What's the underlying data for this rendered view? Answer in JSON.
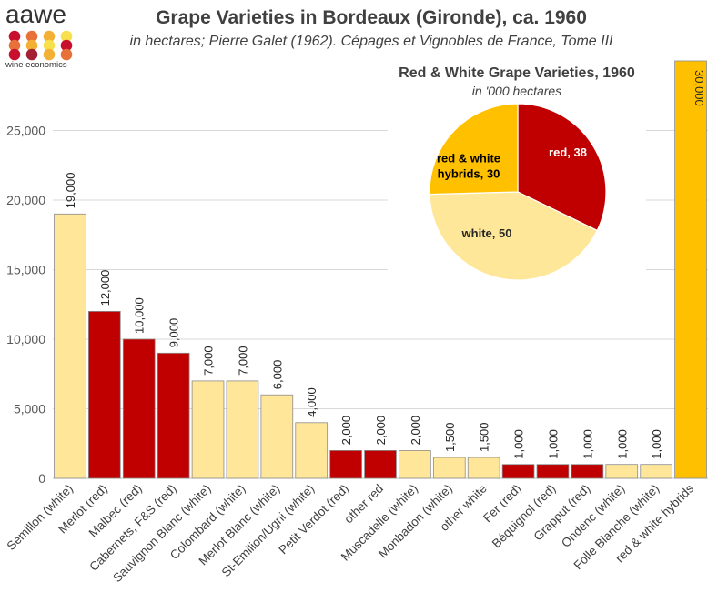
{
  "logo": {
    "word": "aawe",
    "tagline": "wine economics",
    "dot_colors": [
      "#c8102e",
      "#e8713a",
      "#f2b134",
      "#f7e04b",
      "#e8713a",
      "#f2b134",
      "#f7e04b",
      "#c8102e",
      "#c8102e",
      "#a31f34",
      "#f2b134",
      "#e8713a"
    ]
  },
  "colors": {
    "red": "#c00000",
    "white": "#ffe699",
    "hybrid": "#ffc000",
    "pie_white": "#ffe79a"
  },
  "chart_data": [
    {
      "type": "bar",
      "title": "Grape Varieties in Bordeaux (Gironde), ca. 1960",
      "subtitle": "in hectares;  Pierre Galet (1962). Cépages et Vignobles de France, Tome III",
      "ylim": [
        0,
        30000
      ],
      "yticks": [
        0,
        5000,
        10000,
        15000,
        20000,
        25000
      ],
      "ytick_labels": [
        "0",
        "5,000",
        "10,000",
        "15,000",
        "20,000",
        "25,000"
      ],
      "grid": true,
      "categories": [
        "Semillon (white)",
        "Merlot (red)",
        "Malbec (red)",
        "Cabernets, F&S (red)",
        "Sauvignon Blanc (white)",
        "Colombard (white)",
        "Merlot Blanc (white)",
        "St-Emilion/Ugni (white)",
        "Petit Verdot (red)",
        "other red",
        "Muscadelle (white)",
        "Monbadon (white)",
        "other white",
        "Fer (red)",
        "Béquignol (red)",
        "Grapput (red)",
        "Ondenc (white)",
        "Folle Blanche (white)",
        "red & white hybrids"
      ],
      "values": [
        19000,
        12000,
        10000,
        9000,
        7000,
        7000,
        6000,
        4000,
        2000,
        2000,
        2000,
        1500,
        1500,
        1000,
        1000,
        1000,
        1000,
        1000,
        30000
      ],
      "value_labels": [
        "19,000",
        "12,000",
        "10,000",
        "9,000",
        "7,000",
        "7,000",
        "6,000",
        "4,000",
        "2,000",
        "2,000",
        "2,000",
        "1,500",
        "1,500",
        "1,000",
        "1,000",
        "1,000",
        "1,000",
        "1,000",
        "30,000"
      ],
      "color_keys": [
        "white",
        "red",
        "red",
        "red",
        "white",
        "white",
        "white",
        "white",
        "red",
        "red",
        "white",
        "white",
        "white",
        "red",
        "red",
        "red",
        "white",
        "white",
        "hybrid"
      ]
    },
    {
      "type": "pie",
      "title": "Red & White Grape Varieties, 1960",
      "subtitle": "in '000 hectares",
      "slices": [
        {
          "label": [
            "red, 38"
          ],
          "value": 38,
          "color_key": "red"
        },
        {
          "label": [
            "white, 50"
          ],
          "value": 50,
          "color_key": "pie_white"
        },
        {
          "label": [
            "red & white",
            "hybrids, 30"
          ],
          "value": 30,
          "color_key": "hybrid"
        }
      ]
    }
  ]
}
